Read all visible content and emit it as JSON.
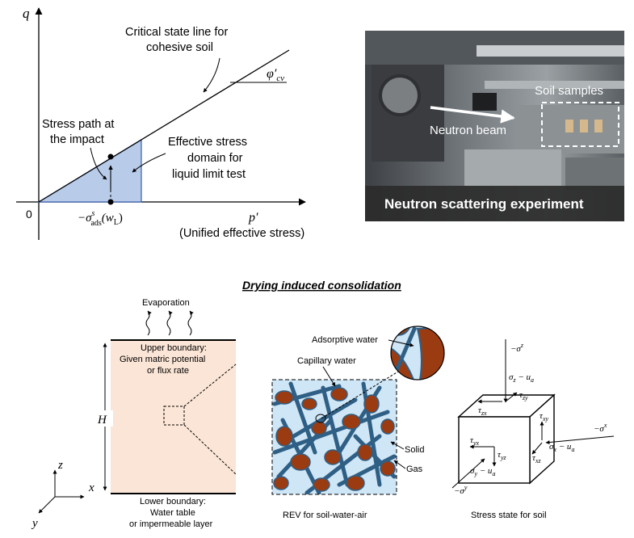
{
  "colors": {
    "stress_domain_fill": "#b8cbe9",
    "stress_domain_stroke": "#3a5fb0",
    "column_fill": "#fbe5d6",
    "soil_grain": "#9b3b12",
    "pore_water": "#2f5f84",
    "adsorptive_film": "#cfe6f6",
    "photo_banner": "#2b2b2b"
  },
  "qp_plot": {
    "y_axis_label": "q",
    "x_axis_label": "p′",
    "origin_label": "0",
    "x_axis_caption": "(Unified effective stress)",
    "csl_label_line1": "Critical state line for",
    "csl_label_line2": "cohesive soil",
    "friction_angle_label": "φ′",
    "friction_angle_sub": "cv",
    "stress_path_line1": "Stress path at",
    "stress_path_line2": "the impact",
    "domain_line1": "Effective stress",
    "domain_line2": "domain for",
    "domain_line3": "liquid limit test",
    "sigma_main": "−σ",
    "sigma_super": "s",
    "sigma_sub": "ads",
    "sigma_arg": "(w",
    "sigma_arg_sub": "L",
    "sigma_arg_close": ")"
  },
  "photo": {
    "soil_samples_label": "Soil samples",
    "neutron_beam_label": "Neutron beam",
    "caption": "Neutron scattering experiment"
  },
  "drying": {
    "title": "Drying induced consolidation",
    "evaporation_label": "Evaporation",
    "upper_boundary_line1": "Upper boundary:",
    "upper_boundary_line2": "Given matric potential",
    "upper_boundary_line3": "or flux rate",
    "lower_boundary_line1": "Lower boundary:",
    "lower_boundary_line2": "Water table",
    "lower_boundary_line3": "or impermeable layer",
    "height_label": "H",
    "axis_z": "z",
    "axis_x": "x",
    "axis_y": "y"
  },
  "rev": {
    "adsorptive_water_label": "Adsorptive water",
    "capillary_water_label": "Capillary water",
    "solid_label": "Solid",
    "gas_label": "Gas",
    "caption": "REV for soil-water-air"
  },
  "stress_state": {
    "caption": "Stress state for soil",
    "top_sigma": "−σ",
    "top_sigma_sup": "z",
    "sz_minus_ua_a": "σ",
    "sz_minus_ua_sub": "z",
    "sz_minus_ua_b": " − u",
    "sz_minus_ua_sub2": "a",
    "tau_zx": "τ",
    "tau_zx_sub": "zx",
    "tau_zy": "τ",
    "tau_zy_sub": "zy",
    "tau_xy": "τ",
    "tau_xy_sub": "xy",
    "tau_yx": "τ",
    "tau_yx_sub": "yx",
    "tau_yz": "τ",
    "tau_yz_sub": "yz",
    "tau_xz": "τ",
    "tau_xz_sub": "xz",
    "sx_minus_ua_a": "σ",
    "sx_minus_ua_sub": "x",
    "sx_minus_ua_b": " − u",
    "sx_minus_ua_sub2": "a",
    "right_sigma": "−σ",
    "right_sigma_sup": "x",
    "sy_minus_ua_a": "σ",
    "sy_minus_ua_sub": "y",
    "sy_minus_ua_b": " − u",
    "sy_minus_ua_sub2": "a",
    "bottom_sigma": "−σ",
    "bottom_sigma_sup": "y"
  }
}
